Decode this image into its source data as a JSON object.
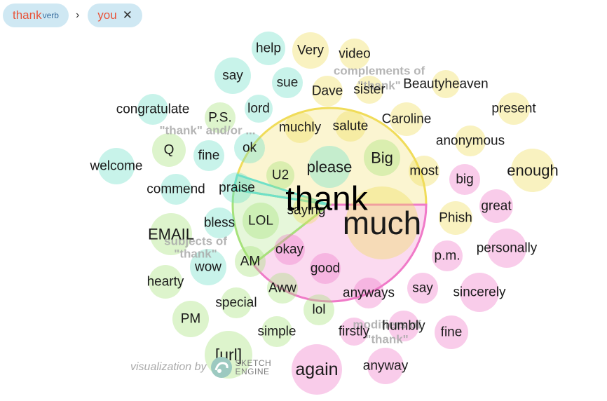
{
  "breadcrumb": {
    "chips": [
      {
        "word": "thank",
        "pos": "verb"
      },
      {
        "word": "you"
      }
    ],
    "separator": "›"
  },
  "credit": {
    "prefix": "visualization by",
    "brand_line1": "SKETCH",
    "brand_line2": "ENGINE"
  },
  "colors": {
    "complements": "#f0dc5a",
    "and_or": "#6fe0c8",
    "subjects": "#a6e27a",
    "modifiers": "#f07ac8"
  },
  "diagram": {
    "center_word": "thank",
    "groups": [
      {
        "key": "complements",
        "label": "complements of \"thank\"",
        "color": "#f0dc5a"
      },
      {
        "key": "and_or",
        "label": "\"thank\" and/or ...",
        "color": "#6fe0c8"
      },
      {
        "key": "subjects",
        "label": "subjects of \"thank\"",
        "color": "#a6e27a"
      },
      {
        "key": "modifiers",
        "label": "modifiers of \"thank\"",
        "color": "#f07ac8"
      }
    ],
    "words": [
      {
        "text": "much",
        "group": "complements"
      },
      {
        "text": "please",
        "group": "and_or"
      },
      {
        "text": "Big",
        "group": "subjects"
      },
      {
        "text": "saying",
        "group": "complements"
      },
      {
        "text": "U2",
        "group": "subjects"
      },
      {
        "text": "muchly",
        "group": "complements"
      },
      {
        "text": "salute",
        "group": "complements"
      },
      {
        "text": "Caroline",
        "group": "complements"
      },
      {
        "text": "most",
        "group": "complements"
      },
      {
        "text": "Dave",
        "group": "complements"
      },
      {
        "text": "sister",
        "group": "complements"
      },
      {
        "text": "Beautyheaven",
        "group": "complements"
      },
      {
        "text": "Very",
        "group": "complements"
      },
      {
        "text": "video",
        "group": "complements"
      },
      {
        "text": "present",
        "group": "complements"
      },
      {
        "text": "anonymous",
        "group": "complements"
      },
      {
        "text": "enough",
        "group": "complements"
      },
      {
        "text": "Phish",
        "group": "complements"
      },
      {
        "text": "ok",
        "group": "and_or"
      },
      {
        "text": "help",
        "group": "and_or"
      },
      {
        "text": "say",
        "group": "and_or"
      },
      {
        "text": "sue",
        "group": "and_or"
      },
      {
        "text": "lord",
        "group": "and_or"
      },
      {
        "text": "congratulate",
        "group": "and_or"
      },
      {
        "text": "welcome",
        "group": "and_or"
      },
      {
        "text": "commend",
        "group": "and_or"
      },
      {
        "text": "praise",
        "group": "and_or"
      },
      {
        "text": "fine",
        "group": "and_or"
      },
      {
        "text": "bless",
        "group": "and_or"
      },
      {
        "text": "wow",
        "group": "and_or"
      },
      {
        "text": "P.S.",
        "group": "subjects"
      },
      {
        "text": "Q",
        "group": "subjects"
      },
      {
        "text": "LOL",
        "group": "subjects"
      },
      {
        "text": "EMAIL",
        "group": "subjects"
      },
      {
        "text": "AM",
        "group": "subjects"
      },
      {
        "text": "hearty",
        "group": "subjects"
      },
      {
        "text": "special",
        "group": "subjects"
      },
      {
        "text": "PM",
        "group": "subjects"
      },
      {
        "text": "Aww",
        "group": "subjects"
      },
      {
        "text": "lol",
        "group": "subjects"
      },
      {
        "text": "simple",
        "group": "subjects"
      },
      {
        "text": "[url]",
        "group": "subjects"
      },
      {
        "text": "okay",
        "group": "modifiers"
      },
      {
        "text": "good",
        "group": "modifiers"
      },
      {
        "text": "anyways",
        "group": "modifiers"
      },
      {
        "text": "say",
        "group": "modifiers"
      },
      {
        "text": "sincerely",
        "group": "modifiers"
      },
      {
        "text": "firstly",
        "group": "modifiers"
      },
      {
        "text": "humbly",
        "group": "modifiers"
      },
      {
        "text": "fine",
        "group": "modifiers"
      },
      {
        "text": "again",
        "group": "modifiers"
      },
      {
        "text": "anyway",
        "group": "modifiers"
      },
      {
        "text": "big",
        "group": "modifiers"
      },
      {
        "text": "great",
        "group": "modifiers"
      },
      {
        "text": "p.m.",
        "group": "modifiers"
      },
      {
        "text": "personally",
        "group": "modifiers"
      }
    ]
  }
}
